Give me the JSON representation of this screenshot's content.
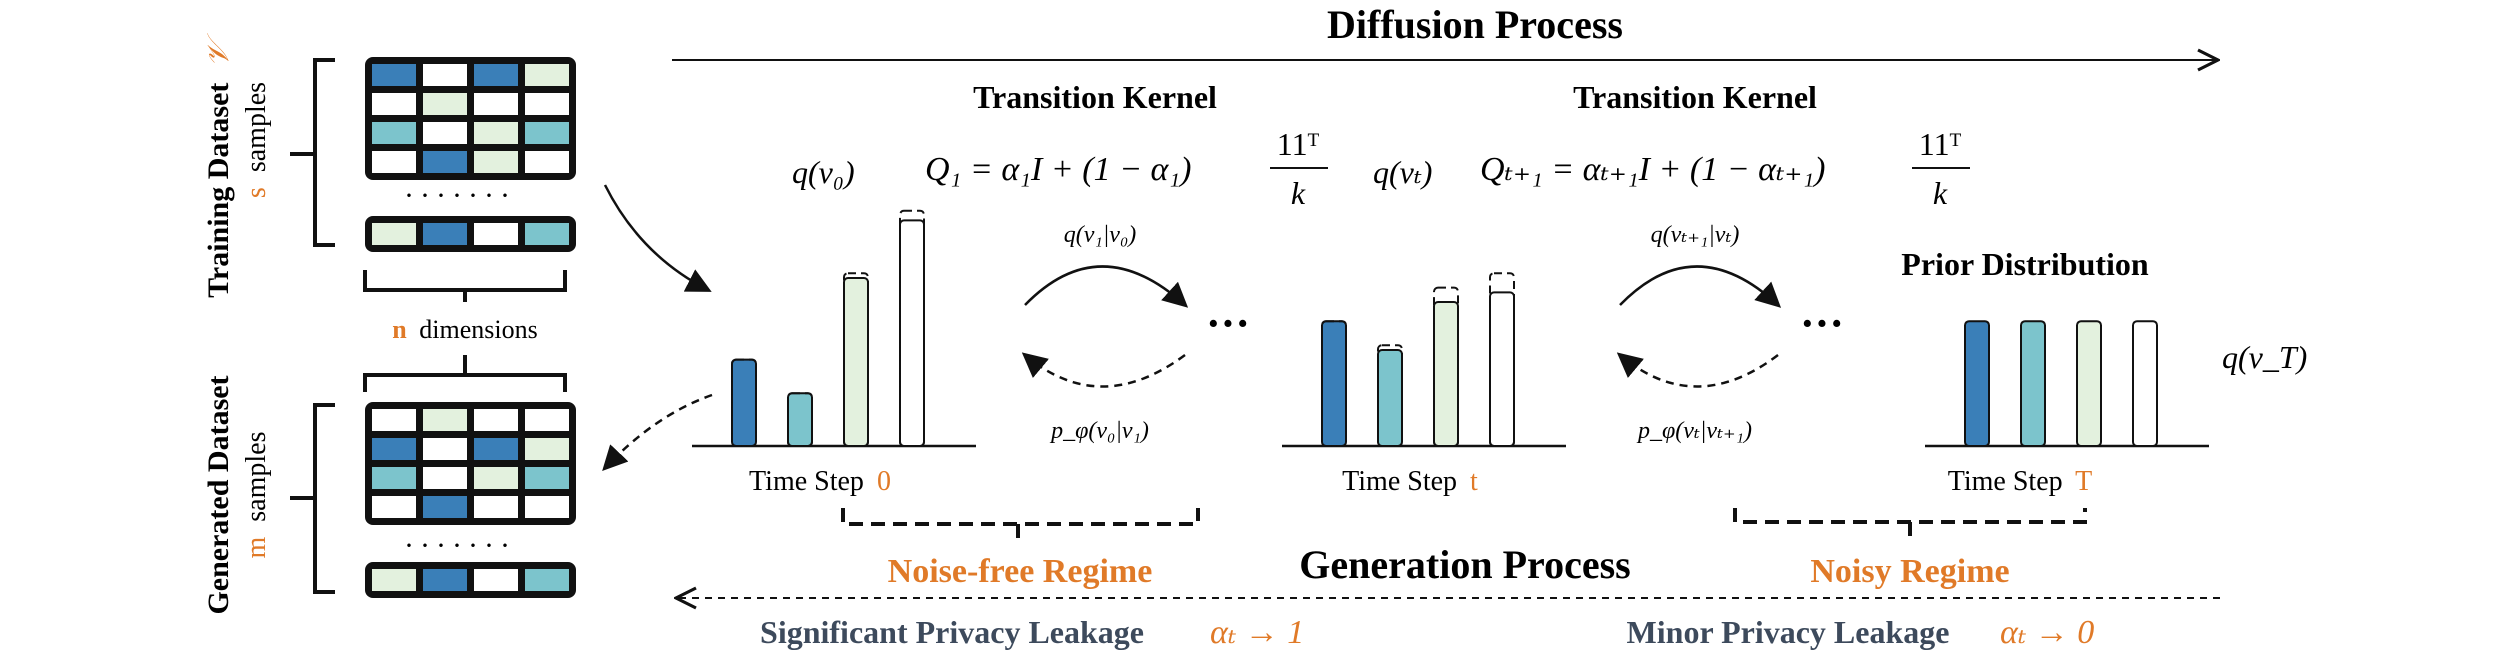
{
  "colors": {
    "dark_blue": "#3a7fb8",
    "teal": "#7cc4cc",
    "light_green": "#e3f1de",
    "white": "#ffffff",
    "orange": "#e07a28",
    "slate": "#3d4a5c",
    "black": "#111111"
  },
  "left_panel": {
    "training_title": "Training Dataset",
    "training_symbol": "𝒱",
    "training_samples_var": "s",
    "training_samples_word": "samples",
    "dimensions_var": "n",
    "dimensions_word": "dimensions",
    "generated_title": "Generated Dataset",
    "generated_samples_var": "m",
    "generated_samples_word": "samples",
    "ellipsis": "·······",
    "training_grid": [
      [
        "dark_blue",
        "white",
        "dark_blue",
        "light_green"
      ],
      [
        "white",
        "light_green",
        "white",
        "white"
      ],
      [
        "teal",
        "white",
        "light_green",
        "teal"
      ],
      [
        "white",
        "dark_blue",
        "light_green",
        "white"
      ]
    ],
    "training_last_row": [
      "light_green",
      "dark_blue",
      "white",
      "teal"
    ],
    "generated_grid": [
      [
        "white",
        "light_green",
        "white",
        "white"
      ],
      [
        "dark_blue",
        "white",
        "dark_blue",
        "light_green"
      ],
      [
        "teal",
        "white",
        "light_green",
        "teal"
      ],
      [
        "white",
        "dark_blue",
        "white",
        "white"
      ]
    ],
    "generated_last_row": [
      "light_green",
      "dark_blue",
      "white",
      "teal"
    ]
  },
  "diffusion": {
    "title": "Diffusion Process",
    "kernel1_title": "Transition Kernel",
    "kernel1_formula": "Q₁ = α₁I + (1 − α₁)",
    "kernel1_frac_num": "11ᵀ",
    "kernel1_frac_den": "k",
    "kernel2_title": "Transition Kernel",
    "kernel2_formula": "Qₜ₊₁ = αₜ₊₁I + (1 − αₜ₊₁)",
    "kernel2_frac_num": "11ᵀ",
    "kernel2_frac_den": "k",
    "q_v0": "q(v₀)",
    "q_vt": "q(vₜ)",
    "q_vT": "q(v_T)",
    "prior_title": "Prior Distribution",
    "forward1_label": "q(v₁|v₀)",
    "reverse1_label": "p_φ(v₀|v₁)",
    "forward2_label": "q(vₜ₊₁|vₜ)",
    "reverse2_label": "p_φ(vₜ|vₜ₊₁)",
    "dots": "···",
    "time_step_word": "Time Step",
    "step0": "0",
    "step_t": "t",
    "step_T": "T"
  },
  "histograms": {
    "step0": [
      {
        "color": "dark_blue",
        "solid": 0.36,
        "dashed": 0.36
      },
      {
        "color": "teal",
        "solid": 0.22,
        "dashed": 0.22
      },
      {
        "color": "light_green",
        "solid": 0.7,
        "dashed": 0.72
      },
      {
        "color": "white",
        "solid": 0.94,
        "dashed": 0.98
      }
    ],
    "step_t": [
      {
        "color": "dark_blue",
        "solid": 0.52,
        "dashed": 0.52
      },
      {
        "color": "teal",
        "solid": 0.4,
        "dashed": 0.42
      },
      {
        "color": "light_green",
        "solid": 0.6,
        "dashed": 0.66
      },
      {
        "color": "white",
        "solid": 0.64,
        "dashed": 0.72
      }
    ],
    "prior": [
      {
        "color": "dark_blue",
        "solid": 0.52,
        "dashed": 0.52
      },
      {
        "color": "teal",
        "solid": 0.52,
        "dashed": 0.52
      },
      {
        "color": "light_green",
        "solid": 0.52,
        "dashed": 0.52
      },
      {
        "color": "white",
        "solid": 0.52,
        "dashed": 0.52
      }
    ]
  },
  "generation": {
    "title": "Generation Process",
    "noise_free": "Noise-free Regime",
    "noisy": "Noisy Regime",
    "significant_leakage": "Significant Privacy Leakage",
    "significant_alpha": "αₜ → 1",
    "minor_leakage": "Minor Privacy Leakage",
    "minor_alpha": "αₜ → 0"
  }
}
